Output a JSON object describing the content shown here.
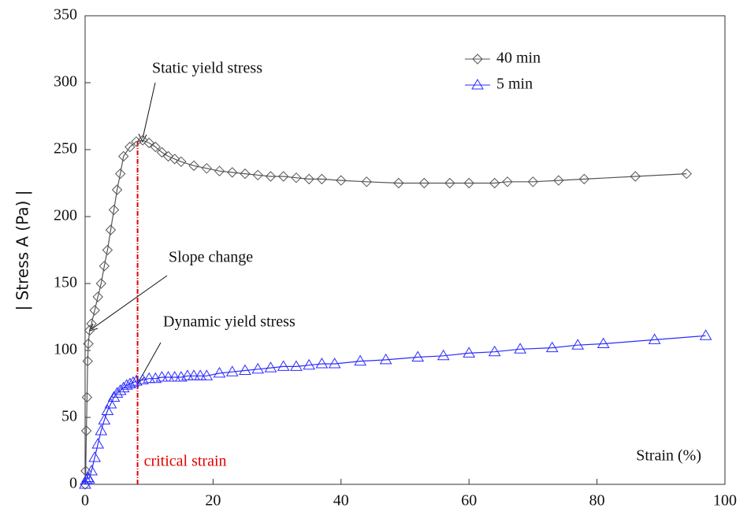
{
  "chart_data": {
    "type": "line",
    "xlabel": "Strain (%)",
    "ylabel": "| Stress A  (Pa) |",
    "xlim": [
      0,
      100
    ],
    "ylim": [
      0,
      350
    ],
    "xticks": [
      0,
      20,
      40,
      60,
      80,
      100
    ],
    "yticks": [
      0,
      50,
      100,
      150,
      200,
      250,
      300,
      350
    ],
    "series": [
      {
        "name": "40 min",
        "color": "#555555",
        "marker": "diamond",
        "x": [
          0,
          0.1,
          0.2,
          0.3,
          0.4,
          0.5,
          0.7,
          1,
          1.5,
          2,
          2.5,
          3,
          3.5,
          4,
          4.5,
          5,
          5.5,
          6,
          7,
          8,
          9,
          10,
          11,
          12,
          13,
          14,
          15,
          17,
          19,
          21,
          23,
          25,
          27,
          29,
          31,
          33,
          35,
          37,
          40,
          44,
          49,
          53,
          57,
          60,
          64,
          66,
          70,
          74,
          78,
          86,
          94
        ],
        "values": [
          0,
          10,
          40,
          65,
          92,
          105,
          115,
          120,
          130,
          140,
          150,
          163,
          175,
          190,
          205,
          220,
          232,
          245,
          252,
          256,
          257,
          255,
          252,
          248,
          245,
          243,
          241,
          238,
          236,
          234,
          233,
          232,
          231,
          230,
          230,
          229,
          228,
          228,
          227,
          226,
          225,
          225,
          225,
          225,
          225,
          226,
          226,
          227,
          228,
          230,
          232
        ]
      },
      {
        "name": "5 min",
        "color": "#2b2bff",
        "marker": "triangle",
        "x": [
          0,
          0.2,
          0.4,
          0.6,
          1,
          1.5,
          2,
          2.5,
          3,
          3.5,
          4,
          4.5,
          5,
          5.5,
          6,
          6.5,
          7,
          7.5,
          8,
          9,
          10,
          11,
          12,
          13,
          14,
          15,
          16,
          17,
          18,
          19,
          21,
          23,
          25,
          27,
          29,
          31,
          33,
          35,
          37,
          39,
          43,
          47,
          52,
          56,
          60,
          64,
          68,
          73,
          77,
          81,
          89,
          97
        ],
        "values": [
          0,
          3,
          5,
          4,
          10,
          20,
          30,
          40,
          48,
          55,
          60,
          65,
          68,
          70,
          72,
          74,
          75,
          76,
          77,
          78,
          79,
          79,
          80,
          80,
          80,
          80,
          81,
          81,
          81,
          81,
          83,
          84,
          85,
          86,
          87,
          88,
          88,
          89,
          90,
          90,
          92,
          93,
          95,
          96,
          98,
          99,
          101,
          102,
          104,
          105,
          108,
          111
        ]
      }
    ],
    "annotations": [
      "Static yield stress",
      "Slope change",
      "Dynamic yield stress"
    ],
    "critical_strain": {
      "x": 8.2,
      "label": "critical strain",
      "color": "#e00000"
    },
    "legend": "upper center"
  }
}
